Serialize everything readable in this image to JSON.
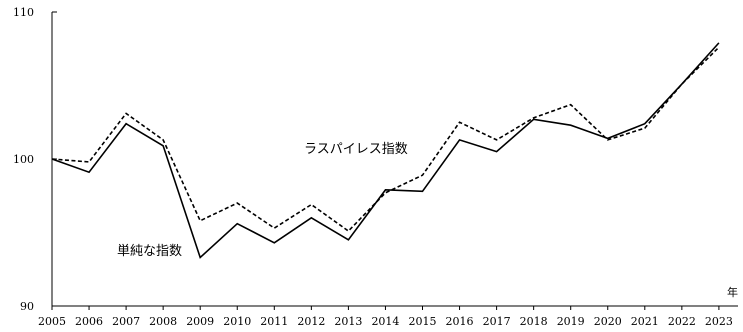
{
  "chart_data": {
    "type": "line",
    "x": [
      "2005",
      "2006",
      "2007",
      "2008",
      "2009",
      "2010",
      "2011",
      "2012",
      "2013",
      "2014",
      "2015",
      "2016",
      "2017",
      "2018",
      "2019",
      "2020",
      "2021",
      "2022",
      "2023"
    ],
    "x_unit_label": "年",
    "ylim": [
      90,
      110
    ],
    "y_ticks": [
      "90",
      "100",
      "110"
    ],
    "grid": false,
    "legend": "none",
    "series": [
      {
        "name": "単純な指数",
        "style": "solid",
        "color": "#000000",
        "values": [
          100.0,
          99.1,
          102.4,
          100.9,
          93.3,
          95.6,
          94.3,
          96.0,
          94.5,
          97.9,
          97.8,
          101.3,
          100.5,
          102.7,
          102.3,
          101.4,
          102.4,
          105.1,
          107.9
        ]
      },
      {
        "name": "ラスパイレス指数",
        "style": "dashed",
        "color": "#000000",
        "values": [
          100.0,
          99.8,
          103.1,
          101.3,
          95.8,
          97.0,
          95.3,
          96.9,
          95.1,
          97.7,
          98.9,
          102.5,
          101.3,
          102.8,
          103.7,
          101.3,
          102.1,
          105.1,
          107.6
        ]
      }
    ]
  }
}
